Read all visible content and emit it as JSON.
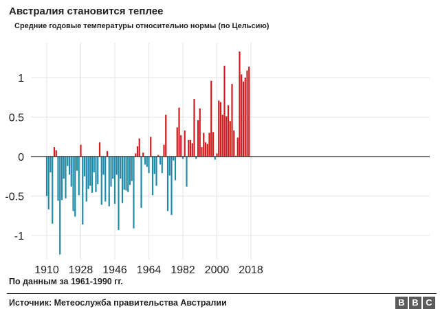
{
  "title": "Австралия становится теплее",
  "subtitle": "Средние годовые температуры относительно нормы (по Цельсию)",
  "note": "По данным за 1961-1990 гг.",
  "source": "Источник: Метеослужба правительства Австралии",
  "logo": {
    "letters": [
      "B",
      "B",
      "C"
    ]
  },
  "colors": {
    "negative": "#1e8aa8",
    "positive": "#d01c1f",
    "grid": "#e2e2e2",
    "axis": "#222222"
  },
  "chart_data": {
    "type": "bar",
    "title": "Австралия становится теплее",
    "subtitle": "Средние годовые температуры относительно нормы (по Цельсию)",
    "xlabel": "",
    "ylabel": "",
    "ylim": [
      -1.3,
      1.35
    ],
    "yticks": [
      1,
      0.5,
      0,
      -0.5,
      -1
    ],
    "ytick_labels": [
      "1",
      "0.5",
      "0",
      "-0.5",
      "-1"
    ],
    "xticks": [
      1910,
      1928,
      1946,
      1964,
      1982,
      2000,
      2018
    ],
    "xtick_labels": [
      "1910",
      "1928",
      "1946",
      "1964",
      "1982",
      "2000",
      "2018"
    ],
    "x_start": 1910,
    "values": [
      -0.5,
      -0.67,
      -0.2,
      -0.85,
      0.12,
      0.08,
      -0.56,
      -1.24,
      -0.55,
      -0.28,
      -0.53,
      -0.12,
      -0.23,
      -0.38,
      -0.69,
      -0.76,
      -0.18,
      -0.49,
      0.15,
      -0.86,
      -0.25,
      -0.57,
      -0.41,
      -0.37,
      -0.46,
      -0.2,
      -0.45,
      -0.35,
      0.18,
      -0.61,
      -0.23,
      -0.57,
      0.07,
      -0.63,
      -0.38,
      -0.28,
      -0.6,
      -0.23,
      -0.93,
      -0.28,
      -0.59,
      -0.42,
      -0.43,
      -0.45,
      -0.36,
      -0.31,
      -0.91,
      0.04,
      0.13,
      0.23,
      -0.65,
      0.05,
      -0.1,
      -0.13,
      -0.21,
      0.25,
      -0.49,
      -0.22,
      -0.37,
      0.02,
      -0.1,
      -0.21,
      0.15,
      0.53,
      -0.69,
      -0.24,
      -0.74,
      -0.05,
      -0.3,
      0.37,
      0.62,
      0.27,
      -0.03,
      0.33,
      -0.38,
      0.21,
      0.21,
      0.17,
      0.73,
      -0.03,
      0.46,
      0.61,
      0.12,
      0.3,
      0.18,
      0.16,
      0.3,
      0.96,
      0.31,
      -0.04,
      0.04,
      0.71,
      0.69,
      0.53,
      1.15,
      0.51,
      0.65,
      0.45,
      0.92,
      0.33,
      0.01,
      0.24,
      1.33,
      1.04,
      0.95,
      1.0,
      1.09,
      1.14
    ]
  }
}
